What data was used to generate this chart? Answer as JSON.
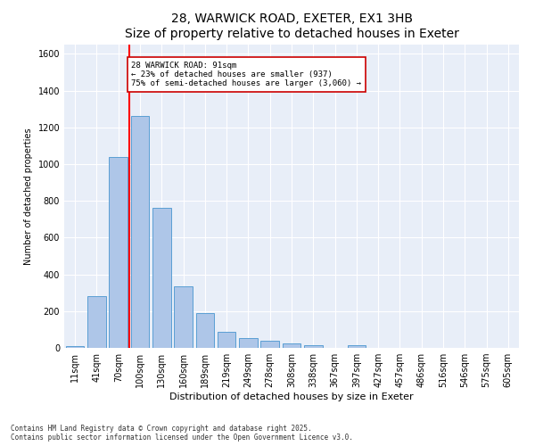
{
  "title": "28, WARWICK ROAD, EXETER, EX1 3HB",
  "subtitle": "Size of property relative to detached houses in Exeter",
  "xlabel": "Distribution of detached houses by size in Exeter",
  "ylabel": "Number of detached properties",
  "categories": [
    "11sqm",
    "41sqm",
    "70sqm",
    "100sqm",
    "130sqm",
    "160sqm",
    "189sqm",
    "219sqm",
    "249sqm",
    "278sqm",
    "308sqm",
    "338sqm",
    "367sqm",
    "397sqm",
    "427sqm",
    "457sqm",
    "486sqm",
    "516sqm",
    "546sqm",
    "575sqm",
    "605sqm"
  ],
  "values": [
    10,
    280,
    1040,
    1260,
    760,
    335,
    190,
    85,
    55,
    38,
    25,
    15,
    0,
    15,
    0,
    0,
    0,
    0,
    0,
    0,
    0
  ],
  "bar_color": "#aec6e8",
  "bar_edge_color": "#5a9fd4",
  "red_line_index": 2.5,
  "annotation_line1": "28 WARWICK ROAD: 91sqm",
  "annotation_line2": "← 23% of detached houses are smaller (937)",
  "annotation_line3": "75% of semi-detached houses are larger (3,060) →",
  "annotation_box_edge": "#cc0000",
  "ylim": [
    0,
    1650
  ],
  "yticks": [
    0,
    200,
    400,
    600,
    800,
    1000,
    1200,
    1400,
    1600
  ],
  "bg_color": "#e8eef8",
  "footer_line1": "Contains HM Land Registry data © Crown copyright and database right 2025.",
  "footer_line2": "Contains public sector information licensed under the Open Government Licence v3.0.",
  "title_fontsize": 10,
  "axis_fontsize": 7,
  "xlabel_fontsize": 8,
  "ylabel_fontsize": 7
}
